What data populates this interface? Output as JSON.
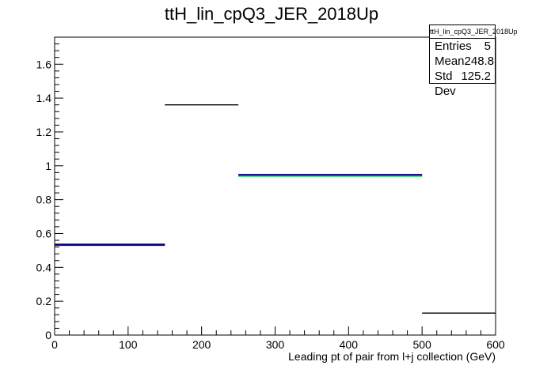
{
  "chart_data": {
    "type": "histogram",
    "title": "ttH_lin_cpQ3_JER_2018Up",
    "xlabel": "Leading pt of pair from l+j collection (GeV)",
    "ylabel": "",
    "xlim": [
      0,
      600
    ],
    "ylim": [
      0,
      1.76
    ],
    "x_ticks": [
      0,
      100,
      200,
      300,
      400,
      500,
      600
    ],
    "y_ticks": [
      0,
      0.2,
      0.4,
      0.6,
      0.8,
      1,
      1.2,
      1.4,
      1.6
    ],
    "y_tick_labels": [
      "0",
      "0.2",
      "0.4",
      "0.6",
      "0.8",
      "1",
      "1.2",
      "1.4",
      "1.6"
    ],
    "grid": false,
    "series": [
      {
        "color": "#000000",
        "bins": [
          {
            "x0": 0,
            "x1": 150,
            "y": 0.53
          },
          {
            "x0": 150,
            "x1": 250,
            "y": 1.36
          },
          {
            "x0": 250,
            "x1": 500,
            "y": 0.94
          },
          {
            "x0": 500,
            "x1": 600,
            "y": 0.13
          }
        ]
      },
      {
        "color": "#00cc44",
        "bins": [
          {
            "x0": 0,
            "x1": 150,
            "y": 0.535
          },
          {
            "x0": 250,
            "x1": 500,
            "y": 0.94
          }
        ]
      },
      {
        "color": "#000080",
        "bins": [
          {
            "x0": 0,
            "x1": 150,
            "y": 0.535
          },
          {
            "x0": 250,
            "x1": 500,
            "y": 0.947
          }
        ]
      }
    ],
    "stats": {
      "name": "ttH_lin_cpQ3_JER_2018Up",
      "rows": [
        {
          "label": "Entries",
          "value": "5"
        },
        {
          "label": "Mean",
          "value": "248.8"
        },
        {
          "label": "Std Dev",
          "value": "125.2"
        }
      ]
    }
  }
}
